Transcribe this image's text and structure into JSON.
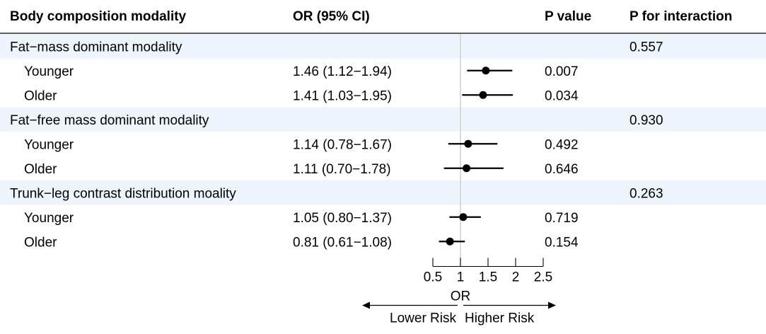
{
  "chart_data": {
    "type": "forest",
    "columns": {
      "label": "Body composition modality",
      "or": "OR (95% CI)",
      "p": "P value",
      "p_interaction": "P for interaction"
    },
    "groups": [
      {
        "name": "Fat−mass dominant modality",
        "p_interaction": "0.557",
        "rows": [
          {
            "label": "Younger",
            "or_text": "1.46 (1.12−1.94)",
            "p": "0.007",
            "or": 1.46,
            "lo": 1.12,
            "hi": 1.94
          },
          {
            "label": "Older",
            "or_text": "1.41 (1.03−1.95)",
            "p": "0.034",
            "or": 1.41,
            "lo": 1.03,
            "hi": 1.95
          }
        ]
      },
      {
        "name": "Fat−free mass dominant modality",
        "p_interaction": "0.930",
        "rows": [
          {
            "label": "Younger",
            "or_text": "1.14 (0.78−1.67)",
            "p": "0.492",
            "or": 1.14,
            "lo": 0.78,
            "hi": 1.67
          },
          {
            "label": "Older",
            "or_text": "1.11 (0.70−1.78)",
            "p": "0.646",
            "or": 1.11,
            "lo": 0.7,
            "hi": 1.78
          }
        ]
      },
      {
        "name": "Trunk−leg contrast distribution moality",
        "p_interaction": "0.263",
        "rows": [
          {
            "label": "Younger",
            "or_text": "1.05 (0.80−1.37)",
            "p": "0.719",
            "or": 1.05,
            "lo": 0.8,
            "hi": 1.37
          },
          {
            "label": "Older",
            "or_text": "0.81 (0.61−1.08)",
            "p": "0.154",
            "or": 0.81,
            "lo": 0.61,
            "hi": 1.08
          }
        ]
      }
    ],
    "x_axis": {
      "label": "OR",
      "ticks": [
        0.5,
        1,
        1.5,
        2,
        2.5
      ],
      "tick_labels": [
        "0.5",
        "1",
        "1.5",
        "2",
        "2.5"
      ],
      "range": [
        0.5,
        2.5
      ],
      "reference_line": 1
    },
    "direction_labels": {
      "left": "Lower Risk",
      "right": "Higher Risk"
    },
    "colors": {
      "group_band": "#eef4fb",
      "header_rule": "#000000",
      "reference_line": "#c8c8c8",
      "marker": "#000000"
    }
  }
}
